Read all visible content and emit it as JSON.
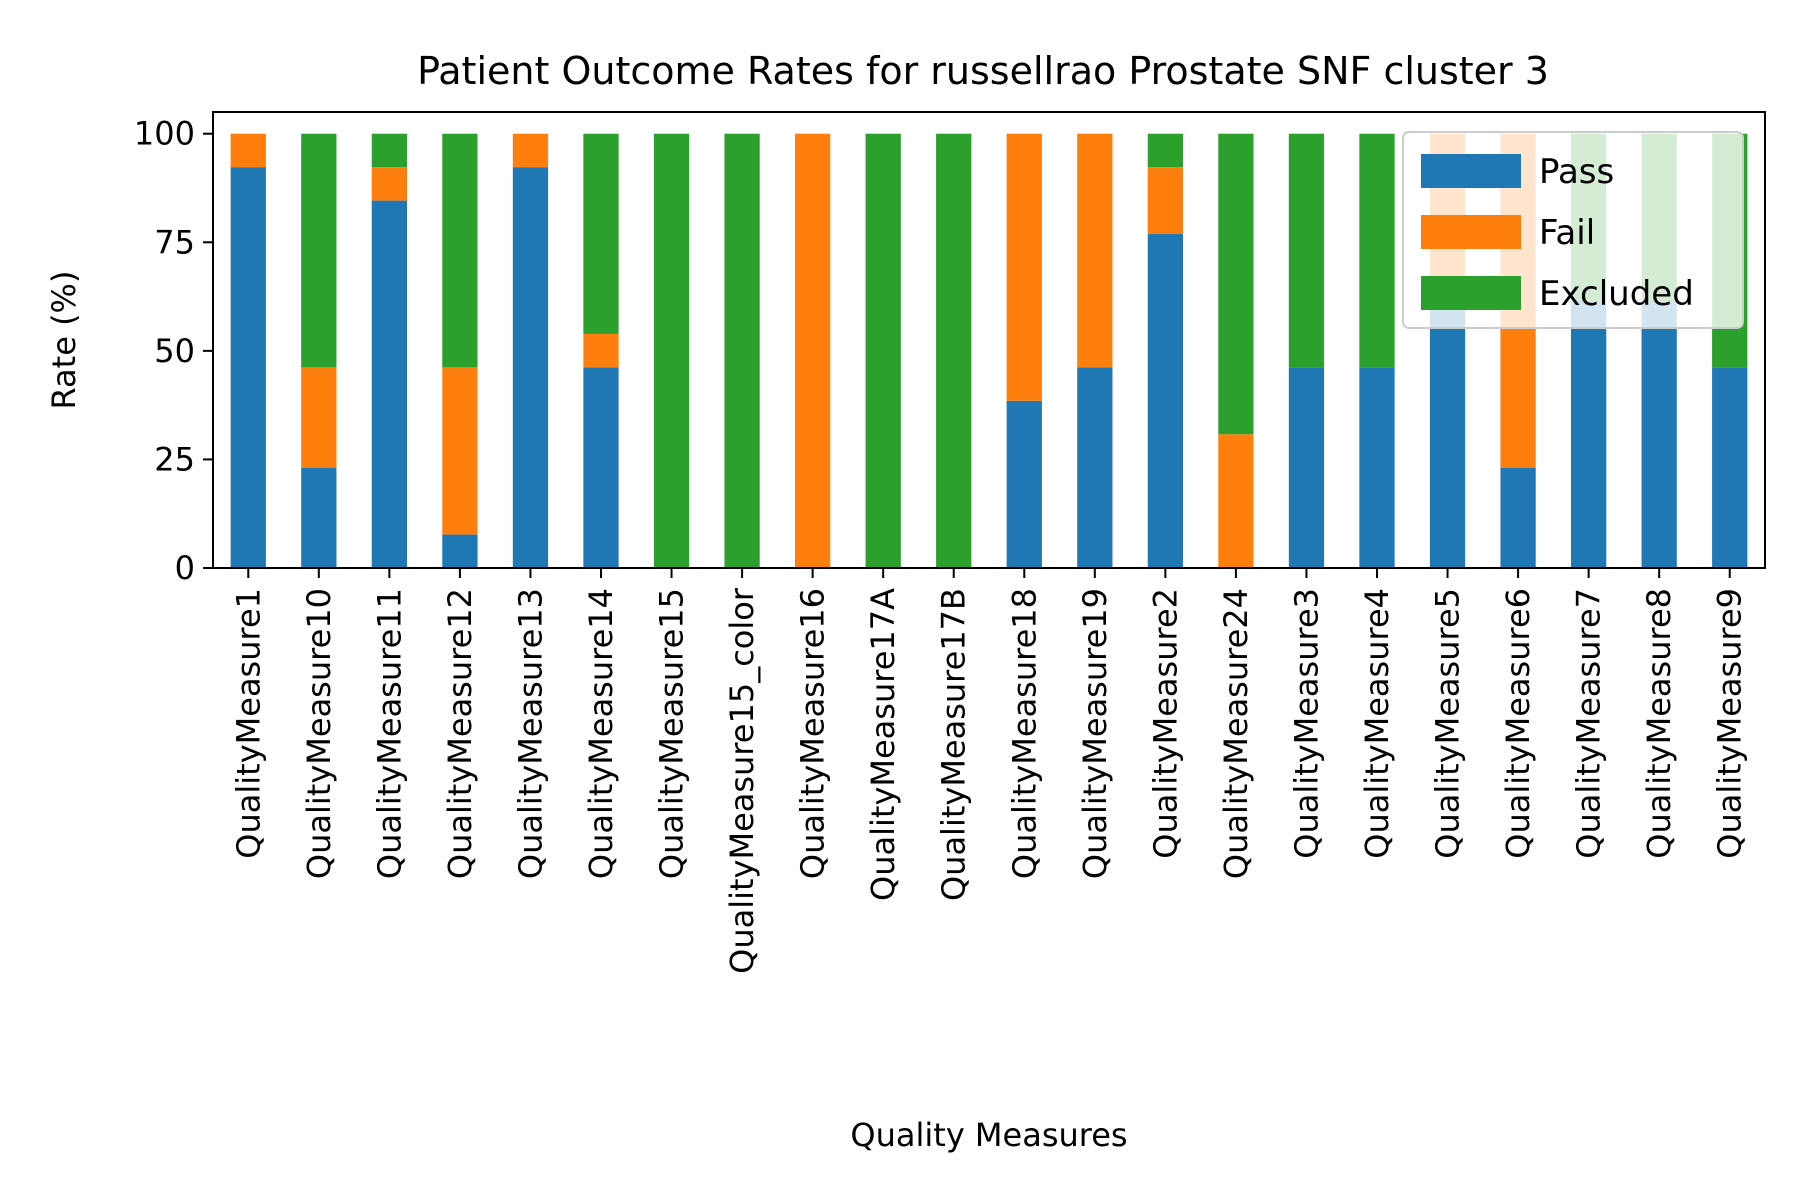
{
  "chart_data": {
    "type": "bar",
    "stacked": true,
    "title": "Patient Outcome Rates for russellrao Prostate SNF cluster 3",
    "xlabel": "Quality Measures",
    "ylabel": "Rate (%)",
    "ylim": [
      0,
      105
    ],
    "yticks": [
      0,
      25,
      50,
      75,
      100
    ],
    "grid": false,
    "legend_position": "top-right",
    "categories": [
      "QualityMeasure1",
      "QualityMeasure10",
      "QualityMeasure11",
      "QualityMeasure12",
      "QualityMeasure13",
      "QualityMeasure14",
      "QualityMeasure15",
      "QualityMeasure15_color",
      "QualityMeasure16",
      "QualityMeasure17A",
      "QualityMeasure17B",
      "QualityMeasure18",
      "QualityMeasure19",
      "QualityMeasure2",
      "QualityMeasure24",
      "QualityMeasure3",
      "QualityMeasure4",
      "QualityMeasure5",
      "QualityMeasure6",
      "QualityMeasure7",
      "QualityMeasure8",
      "QualityMeasure9"
    ],
    "series": [
      {
        "name": "Pass",
        "color": "#1f77b4",
        "values": [
          92.3,
          23.1,
          84.6,
          7.7,
          92.3,
          46.2,
          0,
          0,
          0,
          0,
          0,
          38.5,
          46.2,
          76.9,
          0,
          46.2,
          46.2,
          61.5,
          23.1,
          61.5,
          61.5,
          46.2
        ]
      },
      {
        "name": "Fail",
        "color": "#ff7f0e",
        "values": [
          7.7,
          23.1,
          7.7,
          38.5,
          7.7,
          7.7,
          0,
          0,
          100,
          0,
          0,
          61.5,
          53.8,
          15.4,
          30.8,
          0,
          0,
          38.5,
          76.9,
          0,
          0,
          0
        ]
      },
      {
        "name": "Excluded",
        "color": "#2ca02c",
        "values": [
          0,
          53.8,
          7.7,
          53.8,
          0,
          46.1,
          100,
          100,
          0,
          100,
          100,
          0,
          0,
          7.7,
          69.2,
          53.8,
          53.8,
          0,
          0,
          38.5,
          38.5,
          53.8
        ]
      }
    ]
  }
}
